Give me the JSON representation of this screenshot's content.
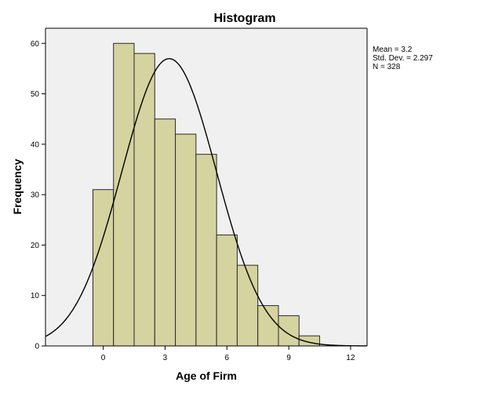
{
  "chart_data": {
    "type": "bar",
    "title": "Histogram",
    "xlabel": "Age of Firm",
    "ylabel": "Frequency",
    "xlim": [
      -2.8,
      12.8
    ],
    "ylim": [
      0,
      63
    ],
    "x_ticks": [
      0,
      3,
      6,
      9,
      12
    ],
    "y_ticks": [
      0,
      10,
      20,
      30,
      40,
      50,
      60
    ],
    "bin_width": 1,
    "bins": [
      {
        "start": -0.5,
        "end": 0.5,
        "count": 31
      },
      {
        "start": 0.5,
        "end": 1.5,
        "count": 60
      },
      {
        "start": 1.5,
        "end": 2.5,
        "count": 58
      },
      {
        "start": 2.5,
        "end": 3.5,
        "count": 45
      },
      {
        "start": 3.5,
        "end": 4.5,
        "count": 42
      },
      {
        "start": 4.5,
        "end": 5.5,
        "count": 38
      },
      {
        "start": 5.5,
        "end": 6.5,
        "count": 22
      },
      {
        "start": 6.5,
        "end": 7.5,
        "count": 16
      },
      {
        "start": 7.5,
        "end": 8.5,
        "count": 8
      },
      {
        "start": 8.5,
        "end": 9.5,
        "count": 6
      },
      {
        "start": 9.5,
        "end": 10.5,
        "count": 2
      }
    ],
    "normal_curve": {
      "mean": 3.2,
      "sd": 2.297,
      "n": 328
    },
    "stats_lines": [
      "Mean = 3.2",
      "Std. Dev. = 2.297",
      "N = 328"
    ],
    "grid": false,
    "stats_placement": "right of plot, top",
    "colors": {
      "bar_fill": "#d5d39f",
      "bar_stroke": "#2a2a2a",
      "plot_background": "#f0f0f0",
      "curve": "#000000",
      "axis": "#000000"
    }
  }
}
